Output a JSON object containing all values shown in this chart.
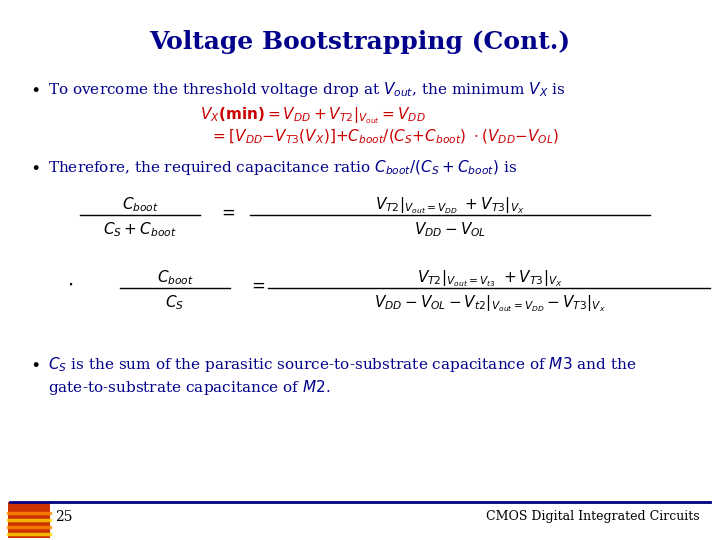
{
  "title": "Voltage Bootstrapping (Cont.)",
  "title_color": "#00008B",
  "title_fontsize": 18,
  "bg_color": "#FFFFFF",
  "footer_page": "25",
  "footer_right": "CMOS Digital Integrated Circuits",
  "navy": "#00008B",
  "red": "#CC0000",
  "black": "#000000",
  "fs": 11,
  "fs_eq": 10.5
}
